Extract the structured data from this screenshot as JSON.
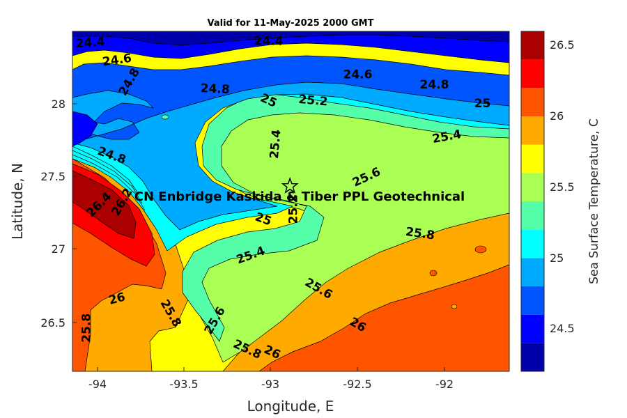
{
  "title": "Valid for 11-May-2025 2000 GMT",
  "xlabel": "Longitude, E",
  "ylabel": "Latitude, N",
  "colorbar_label": "Sea Surface Temperature, C",
  "site_label": "CN Enbridge  Kaskida & Tiber PPL Geotechnical",
  "site_marker": {
    "lon": -92.88,
    "lat": 27.43,
    "symbol": "star"
  },
  "xticks": [
    "-94",
    "-93.5",
    "-93",
    "-92.5",
    "-92"
  ],
  "yticks": [
    "26.5",
    "27",
    "27.5",
    "28"
  ],
  "cbticks": [
    "24.5",
    "25",
    "25.5",
    "26",
    "26.5"
  ],
  "chart_data": {
    "type": "heatmap",
    "subtype": "filled-contour map",
    "title": "Valid for 11-May-2025 2000 GMT",
    "xlabel": "Longitude, E",
    "ylabel": "Latitude, N",
    "xlim": [
      -94.1,
      -91.65
    ],
    "ylim": [
      26.15,
      28.5
    ],
    "grid": false,
    "colorbar": {
      "label": "Sea Surface Temperature, C",
      "range": [
        24.2,
        26.6
      ],
      "levels": [
        24.2,
        24.4,
        24.6,
        24.8,
        25.0,
        25.2,
        25.4,
        25.6,
        25.8,
        26.0,
        26.2,
        26.4,
        26.6
      ],
      "colors": [
        "#0000aa",
        "#0000ff",
        "#0055ff",
        "#00aaff",
        "#00ffff",
        "#55ffaa",
        "#aaff55",
        "#ffff00",
        "#ffaa00",
        "#ff5500",
        "#ff0000",
        "#aa0000"
      ],
      "ticks": [
        24.5,
        25.0,
        25.5,
        26.0,
        26.5
      ]
    },
    "contour_labels": [
      {
        "text": "24.4",
        "lon": -94.0,
        "lat": 28.42,
        "angle": 5
      },
      {
        "text": "24.4",
        "lon": -93.0,
        "lat": 28.43,
        "angle": 0
      },
      {
        "text": "24.6",
        "lon": -93.85,
        "lat": 28.3,
        "angle": 8
      },
      {
        "text": "24.8",
        "lon": -93.78,
        "lat": 28.15,
        "angle": 60
      },
      {
        "text": "24.8",
        "lon": -93.3,
        "lat": 28.1,
        "angle": -3
      },
      {
        "text": "24.6",
        "lon": -92.5,
        "lat": 28.2,
        "angle": 0
      },
      {
        "text": "24.8",
        "lon": -92.07,
        "lat": 28.13,
        "angle": 0
      },
      {
        "text": "25",
        "lon": -93.0,
        "lat": 28.02,
        "angle": -25
      },
      {
        "text": "25.2",
        "lon": -92.75,
        "lat": 28.02,
        "angle": -5
      },
      {
        "text": "25",
        "lon": -91.8,
        "lat": 28.0,
        "angle": 0
      },
      {
        "text": "25.4",
        "lon": -92.96,
        "lat": 27.72,
        "angle": 85
      },
      {
        "text": "25.4",
        "lon": -92.0,
        "lat": 27.77,
        "angle": 10
      },
      {
        "text": "24.8",
        "lon": -93.88,
        "lat": 27.64,
        "angle": -20
      },
      {
        "text": "25.6",
        "lon": -92.45,
        "lat": 27.49,
        "angle": 25
      },
      {
        "text": "25.2",
        "lon": -92.86,
        "lat": 27.27,
        "angle": 90
      },
      {
        "text": "25",
        "lon": -93.03,
        "lat": 27.2,
        "angle": -20
      },
      {
        "text": "26.4",
        "lon": -93.95,
        "lat": 27.3,
        "angle": 45
      },
      {
        "text": "26.2",
        "lon": -93.82,
        "lat": 27.32,
        "angle": 60
      },
      {
        "text": "25.8",
        "lon": -92.15,
        "lat": 27.1,
        "angle": -8
      },
      {
        "text": "25.4",
        "lon": -93.1,
        "lat": 26.95,
        "angle": 20
      },
      {
        "text": "25.6",
        "lon": -92.72,
        "lat": 26.72,
        "angle": -30
      },
      {
        "text": "26",
        "lon": -93.85,
        "lat": 26.65,
        "angle": 15
      },
      {
        "text": "25.8",
        "lon": -93.55,
        "lat": 26.55,
        "angle": -60
      },
      {
        "text": "25.6",
        "lon": -93.3,
        "lat": 26.5,
        "angle": 60
      },
      {
        "text": "25.8",
        "lon": -94.02,
        "lat": 26.45,
        "angle": 90
      },
      {
        "text": "26",
        "lon": -92.5,
        "lat": 26.47,
        "angle": -30
      },
      {
        "text": "25.8",
        "lon": -93.12,
        "lat": 26.3,
        "angle": -25
      },
      {
        "text": "26",
        "lon": -92.98,
        "lat": 26.28,
        "angle": -25
      }
    ]
  }
}
